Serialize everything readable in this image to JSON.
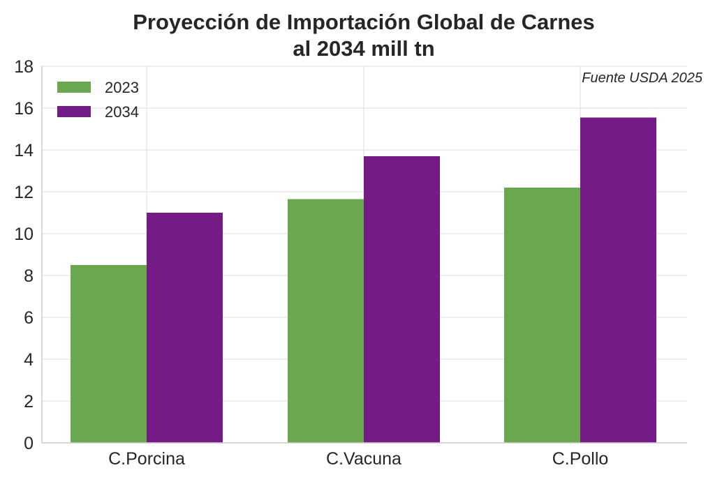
{
  "chart_data": {
    "type": "bar",
    "title": "Proyección de Importación Global de Carnes",
    "subtitle": "al 2034 mill tn",
    "annotation": "Fuente USDA 2025",
    "xlabel": "",
    "ylabel": "",
    "categories": [
      "C.Porcina",
      "C.Vacuna",
      "C.Pollo"
    ],
    "series": [
      {
        "name": "2023",
        "values": [
          8.5,
          11.65,
          12.2
        ],
        "color": "#6aa84f"
      },
      {
        "name": "2034",
        "values": [
          11.0,
          13.7,
          15.55
        ],
        "color": "#741b85"
      }
    ],
    "ylim": [
      0,
      18
    ],
    "yticks": [
      "0",
      "2",
      "4",
      "6",
      "8",
      "10",
      "12",
      "14",
      "16",
      "18"
    ],
    "grid": true,
    "legend_position": "top-left"
  }
}
